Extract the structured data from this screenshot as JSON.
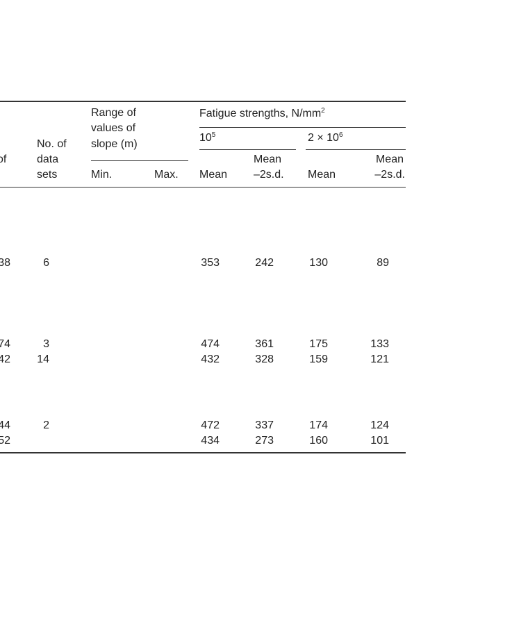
{
  "table": {
    "headers": {
      "partial_col": "of",
      "data_sets": [
        "No. of",
        "data",
        "sets"
      ],
      "slope_range": [
        "Range of",
        "values of",
        "slope (m)"
      ],
      "slope_min": "Min.",
      "slope_max": "Max.",
      "fatigue_group": "Fatigue strengths, N/mm",
      "fatigue_group_sup": "2",
      "cycles_1_base": "10",
      "cycles_1_sup": "5",
      "cycles_2_base": "2 × 10",
      "cycles_2_sup": "6",
      "mean": "Mean",
      "mean_2sd": [
        "Mean",
        "–2s.d."
      ]
    },
    "rows": [
      {
        "partial": "38",
        "data_sets": "6",
        "mean_1e5": "353",
        "mean2sd_1e5": "242",
        "mean_2e6": "130",
        "mean2sd_2e6": "89"
      },
      {
        "partial": "74",
        "data_sets": "3",
        "mean_1e5": "474",
        "mean2sd_1e5": "361",
        "mean_2e6": "175",
        "mean2sd_2e6": "133"
      },
      {
        "partial": "42",
        "data_sets": "14",
        "mean_1e5": "432",
        "mean2sd_1e5": "328",
        "mean_2e6": "159",
        "mean2sd_2e6": "121"
      },
      {
        "partial": "44",
        "data_sets": "2",
        "mean_1e5": "472",
        "mean2sd_1e5": "337",
        "mean_2e6": "174",
        "mean2sd_2e6": "124"
      },
      {
        "partial": "52",
        "data_sets": "",
        "mean_1e5": "434",
        "mean2sd_1e5": "273",
        "mean_2e6": "160",
        "mean2sd_2e6": "101"
      }
    ]
  }
}
